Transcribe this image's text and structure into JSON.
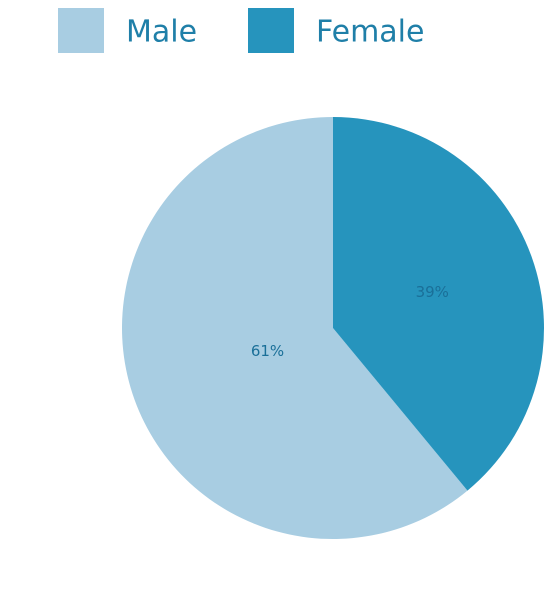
{
  "chart_data": {
    "type": "pie",
    "categories": [
      "Male",
      "Female"
    ],
    "values": [
      61,
      39
    ],
    "value_labels": [
      "61%",
      "39%"
    ],
    "colors": [
      "#a8cde2",
      "#2694bd"
    ]
  }
}
